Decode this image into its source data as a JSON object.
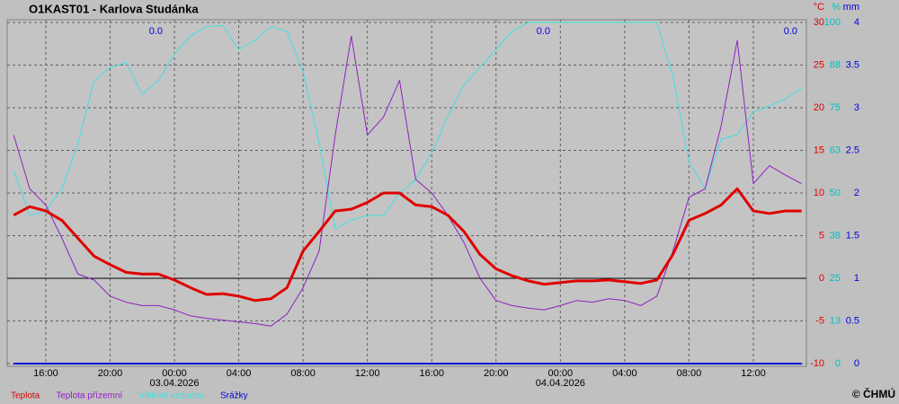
{
  "chart_data": {
    "type": "line",
    "title": "O1KAST01 - Karlova Studánka",
    "x": [
      -10,
      -9,
      -8,
      -7,
      -6,
      -5,
      -4,
      -3,
      -2,
      -1,
      0,
      1,
      2,
      3,
      4,
      5,
      6,
      7,
      8,
      9,
      10,
      11,
      12,
      13,
      14,
      15,
      16,
      17,
      18,
      19,
      20,
      21,
      22,
      23,
      24,
      25,
      26,
      27,
      28,
      29,
      30,
      31,
      32,
      33,
      34,
      35,
      36,
      37,
      38,
      39
    ],
    "xlim": [
      -10.4,
      39.3
    ],
    "xticks": [
      {
        "value": -8,
        "label": "16:00"
      },
      {
        "value": -4,
        "label": "20:00"
      },
      {
        "value": 0,
        "label": "00:00"
      },
      {
        "value": 4,
        "label": "04:00"
      },
      {
        "value": 8,
        "label": "08:00"
      },
      {
        "value": 12,
        "label": "12:00"
      },
      {
        "value": 16,
        "label": "16:00"
      },
      {
        "value": 20,
        "label": "20:00"
      },
      {
        "value": 24,
        "label": "00:00"
      },
      {
        "value": 28,
        "label": "04:00"
      },
      {
        "value": 32,
        "label": "08:00"
      },
      {
        "value": 36,
        "label": "12:00"
      }
    ],
    "date_labels": [
      {
        "value": 0,
        "label": "03.04.2026"
      },
      {
        "value": 24,
        "label": "04.04.2026"
      }
    ],
    "y_unit": "°C",
    "ylim": [
      -10,
      30
    ],
    "yticks": [
      -10,
      -5,
      0,
      5,
      10,
      15,
      20,
      25,
      30
    ],
    "y_color": "#e00000",
    "y2_unit": "%",
    "y2lim": [
      0,
      100
    ],
    "y2ticks": [
      0,
      {
        "value": 12.5,
        "label": "13"
      },
      25,
      {
        "value": 37.5,
        "label": "38"
      },
      50,
      {
        "value": 62.5,
        "label": "63"
      },
      75,
      {
        "value": 87.5,
        "label": "88"
      },
      100
    ],
    "y2_color": "#00c0c0",
    "y3_unit": "mm",
    "y3lim": [
      0,
      4
    ],
    "y3ticks": [
      0,
      0.5,
      1,
      1.5,
      2,
      2.5,
      3,
      3.5,
      4
    ],
    "y3_color": "#0000e0",
    "grid": true,
    "annotations": [
      "0.0",
      "0.0",
      "0.0"
    ],
    "copyright": "© ČHMÚ",
    "series": [
      {
        "name": "Teplota",
        "color": "#e00000",
        "axis": "y",
        "width": 3,
        "values": [
          7.4,
          8.4,
          7.9,
          6.8,
          4.7,
          2.6,
          1.6,
          0.7,
          0.5,
          0.5,
          -0.2,
          -1.1,
          -1.9,
          -1.8,
          -2.1,
          -2.6,
          -2.4,
          -1.1,
          3.2,
          5.5,
          7.9,
          8.1,
          8.9,
          10.0,
          10.0,
          8.6,
          8.4,
          7.4,
          5.5,
          2.8,
          1.1,
          0.3,
          -0.3,
          -0.7,
          -0.5,
          -0.3,
          -0.3,
          -0.2,
          -0.4,
          -0.6,
          -0.2,
          2.8,
          6.8,
          7.6,
          8.6,
          10.5,
          7.9,
          7.6,
          7.9,
          7.9
        ]
      },
      {
        "name": "Teplota přízemní",
        "color": "#9020c0",
        "axis": "y",
        "width": 1,
        "values": [
          16.8,
          10.5,
          8.6,
          4.7,
          0.5,
          -0.2,
          -2.1,
          -2.8,
          -3.2,
          -3.2,
          -3.7,
          -4.4,
          -4.7,
          -4.9,
          -5.1,
          -5.3,
          -5.6,
          -4.2,
          -1.1,
          3.2,
          16.8,
          28.4,
          16.8,
          18.9,
          23.2,
          11.6,
          10.0,
          7.4,
          4.2,
          0,
          -2.6,
          -3.2,
          -3.5,
          -3.7,
          -3.2,
          -2.6,
          -2.8,
          -2.4,
          -2.6,
          -3.2,
          -2.1,
          3.2,
          9.5,
          10.5,
          17.9,
          27.9,
          11.1,
          13.2,
          12.1,
          11.1
        ]
      },
      {
        "name": "Vlhkost vzduchu",
        "color": "#40e0e0",
        "axis": "y2",
        "width": 1,
        "values": [
          56.6,
          43.4,
          44.7,
          51.3,
          64.5,
          82.9,
          86.8,
          88.2,
          78.9,
          82.9,
          90.8,
          96.1,
          98.7,
          99.2,
          92.1,
          94.7,
          98.7,
          97.4,
          85.5,
          64.5,
          39.5,
          42.1,
          43.4,
          43.4,
          50.0,
          53.9,
          61.8,
          72.4,
          81.6,
          86.8,
          92.1,
          97.4,
          100,
          100,
          100,
          100,
          100,
          100,
          100,
          100,
          100,
          84.2,
          59.2,
          51.3,
          65.8,
          67.1,
          73.7,
          75.5,
          77.6,
          80.8
        ]
      },
      {
        "name": "Srážky",
        "color": "#0000e0",
        "axis": "y3",
        "width": 2,
        "values": [
          0,
          0,
          0,
          0,
          0,
          0,
          0,
          0,
          0,
          0,
          0,
          0,
          0,
          0,
          0,
          0,
          0,
          0,
          0,
          0,
          0,
          0,
          0,
          0,
          0,
          0,
          0,
          0,
          0,
          0,
          0,
          0,
          0,
          0,
          0,
          0,
          0,
          0,
          0,
          0,
          0,
          0,
          0,
          0,
          0,
          0,
          0,
          0,
          0,
          0
        ]
      }
    ]
  }
}
